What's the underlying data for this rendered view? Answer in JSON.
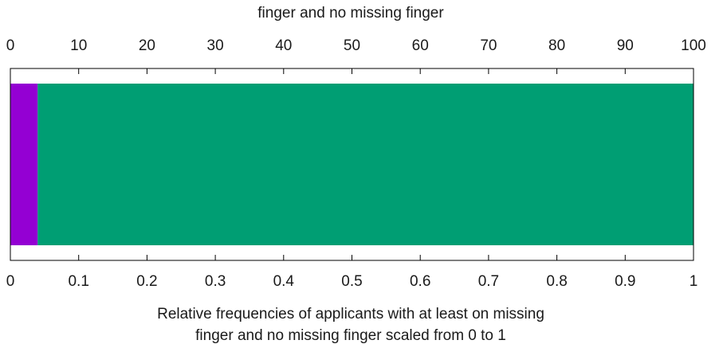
{
  "chart_data": {
    "type": "bar",
    "orientation": "horizontal-stacked",
    "top_title_visible_line": "finger and no missing finger",
    "xlabel_line1": "Relative frequencies of applicants with at least on missing",
    "xlabel_line2": "finger and no missing finger scaled from 0 to 1",
    "top_axis": {
      "range": [
        0,
        100
      ],
      "ticks": [
        "0",
        "10",
        "20",
        "30",
        "40",
        "50",
        "60",
        "70",
        "80",
        "90",
        "100"
      ]
    },
    "bottom_axis": {
      "range": [
        0,
        1
      ],
      "ticks": [
        "0",
        "0.1",
        "0.2",
        "0.3",
        "0.4",
        "0.5",
        "0.6",
        "0.7",
        "0.8",
        "0.9",
        "1"
      ]
    },
    "segments": [
      {
        "value": 0.04,
        "color": "#9400d3"
      },
      {
        "value": 0.96,
        "color": "#009e73"
      }
    ],
    "grid": false,
    "legend": "none"
  }
}
